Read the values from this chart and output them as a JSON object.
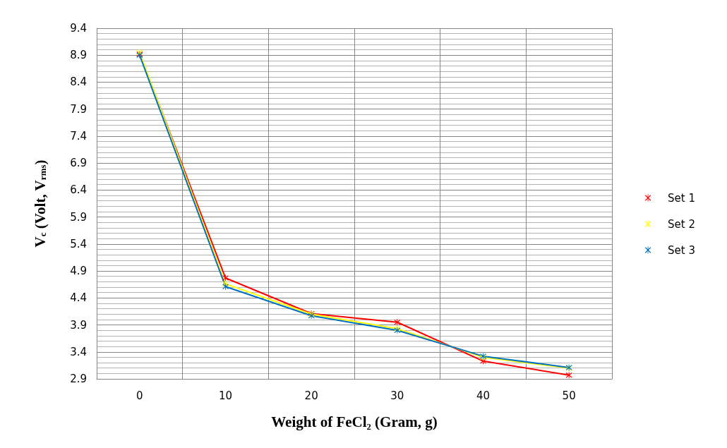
{
  "chart_data": {
    "type": "line",
    "xlabel": "Weight of FeCl₂ (Gram, g)",
    "ylabel": "V$_{c}$ (Volt, V$_{rms}$)",
    "categories": [
      "0",
      "10",
      "20",
      "30",
      "40",
      "50"
    ],
    "series": [
      {
        "name": "Set 1",
        "color": "#ff0000",
        "values": [
          8.92,
          4.77,
          4.11,
          3.95,
          3.23,
          2.97
        ]
      },
      {
        "name": "Set 2",
        "color": "#ffff00",
        "values": [
          8.95,
          4.66,
          4.1,
          3.83,
          3.3,
          3.1
        ]
      },
      {
        "name": "Set 3",
        "color": "#0070c0",
        "values": [
          8.9,
          4.61,
          4.07,
          3.8,
          3.32,
          3.11
        ]
      }
    ],
    "ylim": [
      2.9,
      9.4
    ],
    "yticks": [
      2.9,
      3.4,
      3.9,
      4.4,
      4.9,
      5.4,
      5.9,
      6.4,
      6.9,
      7.4,
      7.9,
      8.4,
      8.9,
      9.4
    ],
    "grid": true,
    "legend": "right",
    "marker": "cross",
    "line_style": "solid"
  }
}
